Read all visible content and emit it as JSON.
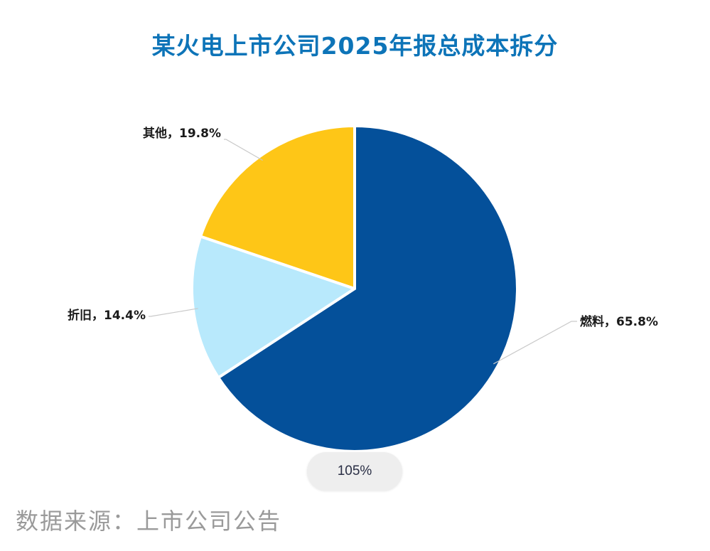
{
  "chart_data": {
    "type": "pie",
    "title": "某火电上市公司2025年报总成本拆分",
    "slices": [
      {
        "name": "燃料",
        "value": 65.8,
        "label": "燃料，65.8%",
        "color": "#04509a"
      },
      {
        "name": "折旧",
        "value": 14.4,
        "label": "折旧，14.4%",
        "color": "#b8e9fc"
      },
      {
        "name": "其他",
        "value": 19.8,
        "label": "其他，19.8%",
        "color": "#fec617"
      }
    ],
    "start": "12 o'clock",
    "direction": "clockwise",
    "legend": "none"
  },
  "viewer": {
    "zoom_label": "105%"
  },
  "footer": {
    "source": "数据来源：上市公司公告"
  }
}
